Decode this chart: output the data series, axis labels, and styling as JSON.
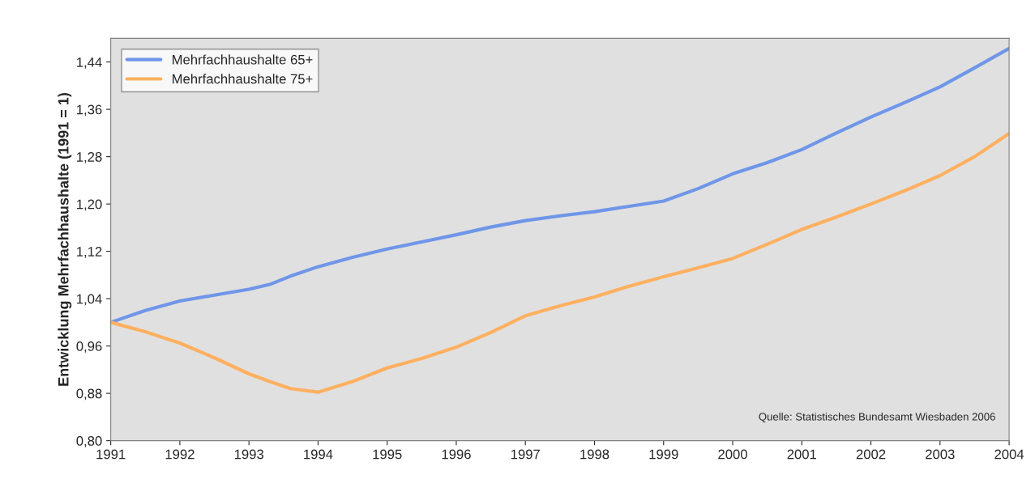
{
  "chart_data": {
    "type": "line",
    "ylabel": "Entwicklung Mehrfachhaushalte (1991 = 1)",
    "x": [
      1991,
      1991.5,
      1992,
      1992.5,
      1993,
      1993.3,
      1993.6,
      1994,
      1994.5,
      1995,
      1995.5,
      1996,
      1996.5,
      1997,
      1997.5,
      1998,
      1998.5,
      1999,
      1999.5,
      2000,
      2000.5,
      2001,
      2001.5,
      2002,
      2002.5,
      2003,
      2003.5,
      2004
    ],
    "series": [
      {
        "name": "Mehrfachhaushalte 65+",
        "color": "#6f96e8",
        "values": [
          1.0,
          1.02,
          1.036,
          1.046,
          1.056,
          1.064,
          1.078,
          1.094,
          1.11,
          1.124,
          1.136,
          1.148,
          1.161,
          1.172,
          1.18,
          1.187,
          1.196,
          1.205,
          1.226,
          1.251,
          1.27,
          1.292,
          1.32,
          1.347,
          1.372,
          1.398,
          1.43,
          1.463
        ]
      },
      {
        "name": "Mehrfachhaushalte 75+",
        "color": "#ffb060",
        "values": [
          1.0,
          0.984,
          0.965,
          0.94,
          0.913,
          0.9,
          0.888,
          0.882,
          0.9,
          0.923,
          0.939,
          0.958,
          0.983,
          1.011,
          1.028,
          1.043,
          1.061,
          1.077,
          1.092,
          1.108,
          1.132,
          1.157,
          1.178,
          1.2,
          1.223,
          1.248,
          1.28,
          1.319
        ]
      }
    ],
    "xlim": [
      1991,
      2004
    ],
    "xticks": [
      1991,
      1992,
      1993,
      1994,
      1995,
      1996,
      1997,
      1998,
      1999,
      2000,
      2001,
      2002,
      2003,
      2004
    ],
    "ylim": [
      0.8,
      1.48
    ],
    "yticks": [
      {
        "value": 0.8,
        "label": "0,80"
      },
      {
        "value": 0.88,
        "label": "0,88"
      },
      {
        "value": 0.96,
        "label": "0,96"
      },
      {
        "value": 1.04,
        "label": "1,04"
      },
      {
        "value": 1.12,
        "label": "1,12"
      },
      {
        "value": 1.2,
        "label": "1,20"
      },
      {
        "value": 1.28,
        "label": "1,28"
      },
      {
        "value": 1.36,
        "label": "1,36"
      },
      {
        "value": 1.44,
        "label": "1,44"
      }
    ],
    "grid": false,
    "legend": "top left",
    "annotations": [
      "Quelle: Statistisches Bundesamt Wiesbaden 2006"
    ]
  }
}
